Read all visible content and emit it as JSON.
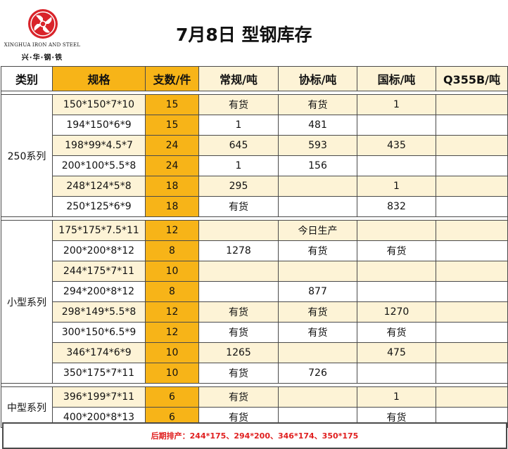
{
  "header": {
    "logo_en": "XINGHUA IRON AND STEEL",
    "logo_cn": "兴·华·钢·铁",
    "title": "7月8日  型钢库存"
  },
  "table": {
    "columns": [
      "类别",
      "规格",
      "支数/件",
      "常规/吨",
      "协标/吨",
      "国标/吨",
      "Q355B/吨"
    ],
    "groups": [
      {
        "category": "250系列",
        "rows": [
          {
            "spec": "150*150*7*10",
            "count": "15",
            "regular": "有货",
            "association": "有货",
            "national": "1",
            "q355b": ""
          },
          {
            "spec": "194*150*6*9",
            "count": "15",
            "regular": "1",
            "association": "481",
            "national": "",
            "q355b": ""
          },
          {
            "spec": "198*99*4.5*7",
            "count": "24",
            "regular": "645",
            "association": "593",
            "national": "435",
            "q355b": ""
          },
          {
            "spec": "200*100*5.5*8",
            "count": "24",
            "regular": "1",
            "association": "156",
            "national": "",
            "q355b": ""
          },
          {
            "spec": "248*124*5*8",
            "count": "18",
            "regular": "295",
            "association": "",
            "national": "1",
            "q355b": ""
          },
          {
            "spec": "250*125*6*9",
            "count": "18",
            "regular": "有货",
            "association": "",
            "national": "832",
            "q355b": ""
          }
        ]
      },
      {
        "category": "小型系列",
        "rows": [
          {
            "spec": "175*175*7.5*11",
            "count": "12",
            "regular": "",
            "association": "今日生产",
            "national": "",
            "q355b": ""
          },
          {
            "spec": "200*200*8*12",
            "count": "8",
            "regular": "1278",
            "association": "有货",
            "national": "有货",
            "q355b": ""
          },
          {
            "spec": "244*175*7*11",
            "count": "10",
            "regular": "",
            "association": "",
            "national": "",
            "q355b": ""
          },
          {
            "spec": "294*200*8*12",
            "count": "8",
            "regular": "",
            "association": "877",
            "national": "",
            "q355b": ""
          },
          {
            "spec": "298*149*5.5*8",
            "count": "12",
            "regular": "有货",
            "association": "有货",
            "national": "1270",
            "q355b": ""
          },
          {
            "spec": "300*150*6.5*9",
            "count": "12",
            "regular": "有货",
            "association": "有货",
            "national": "有货",
            "q355b": ""
          },
          {
            "spec": "346*174*6*9",
            "count": "10",
            "regular": "1265",
            "association": "",
            "national": "475",
            "q355b": ""
          },
          {
            "spec": "350*175*7*11",
            "count": "10",
            "regular": "有货",
            "association": "726",
            "national": "",
            "q355b": ""
          }
        ]
      },
      {
        "category": "中型系列",
        "rows": [
          {
            "spec": "396*199*7*11",
            "count": "6",
            "regular": "有货",
            "association": "",
            "national": "1",
            "q355b": ""
          },
          {
            "spec": "400*200*8*13",
            "count": "6",
            "regular": "有货",
            "association": "",
            "national": "有货",
            "q355b": ""
          }
        ]
      }
    ]
  },
  "footer": {
    "note": "后期排产：244*175、294*200、346*174、350*175"
  },
  "colors": {
    "orange": "#f7b418",
    "light": "#fdf3d6",
    "red": "#e02020",
    "logo_red": "#d9232a"
  }
}
